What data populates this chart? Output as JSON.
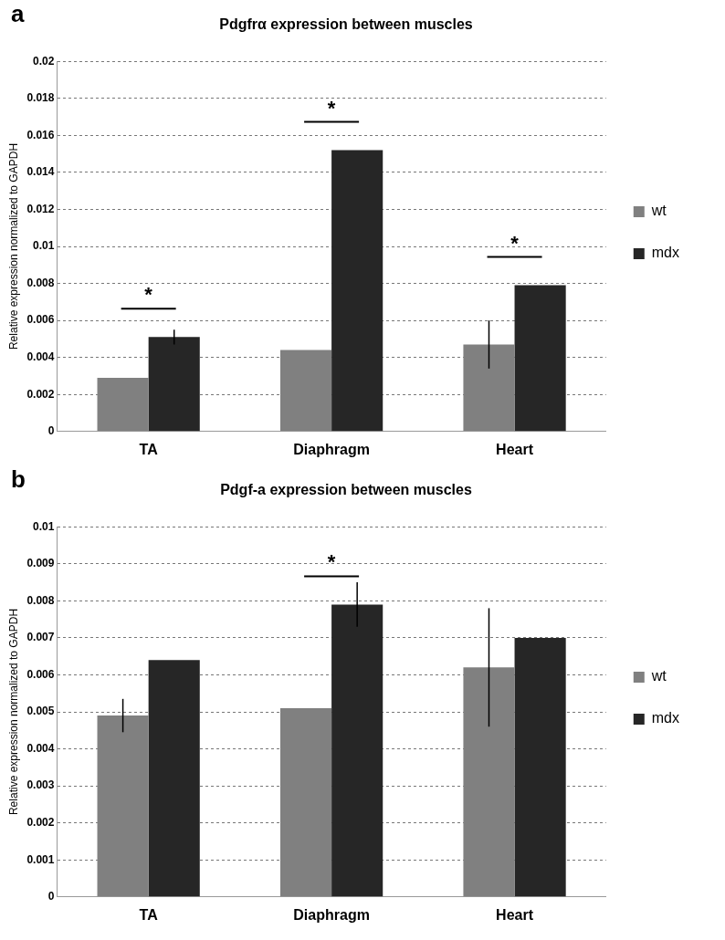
{
  "chart_data": [
    {
      "type": "bar",
      "title": "Pdgfrα expression between muscles",
      "ylabel": "Relative expression normalized to GAPDH",
      "categories": [
        "TA",
        "Diaphragm",
        "Heart"
      ],
      "series": [
        {
          "name": "wt",
          "color": "#808080",
          "values": [
            0.0029,
            0.0044,
            0.0047
          ],
          "errors": [
            null,
            null,
            0.0013
          ]
        },
        {
          "name": "mdx",
          "color": "#262626",
          "values": [
            0.0051,
            0.0152,
            0.0079
          ],
          "errors": [
            0.0004,
            null,
            null
          ]
        }
      ],
      "ylim": [
        0,
        0.02
      ],
      "yticks": [
        0,
        0.002,
        0.004,
        0.006,
        0.008,
        0.01,
        0.012,
        0.014,
        0.016,
        0.018,
        0.02
      ],
      "grid": "y",
      "legend": "right",
      "annotations": [
        "a",
        {
          "text": "*",
          "x": "TA",
          "y": 0.0051
        },
        {
          "text": "*",
          "x": "Diaphragm",
          "y": 0.0152
        },
        {
          "text": "*",
          "x": "Heart",
          "y": 0.0079
        }
      ]
    },
    {
      "type": "bar",
      "title": "Pdgf-a expression between muscles",
      "ylabel": "Relative expression normalized to GAPDH",
      "categories": [
        "TA",
        "Diaphragm",
        "Heart"
      ],
      "series": [
        {
          "name": "wt",
          "color": "#808080",
          "values": [
            0.0049,
            0.0051,
            0.0062
          ],
          "errors": [
            0.00045,
            null,
            0.0016
          ]
        },
        {
          "name": "mdx",
          "color": "#262626",
          "values": [
            0.0064,
            0.0079,
            0.007
          ],
          "errors": [
            null,
            0.0006,
            null
          ]
        }
      ],
      "ylim": [
        0,
        0.01
      ],
      "yticks": [
        0,
        0.001,
        0.002,
        0.003,
        0.004,
        0.005,
        0.006,
        0.007,
        0.008,
        0.009,
        0.01
      ],
      "grid": "y",
      "legend": "right",
      "annotations": [
        "b",
        {
          "text": "*",
          "x": "Diaphragm",
          "y": 0.0079
        }
      ]
    }
  ]
}
